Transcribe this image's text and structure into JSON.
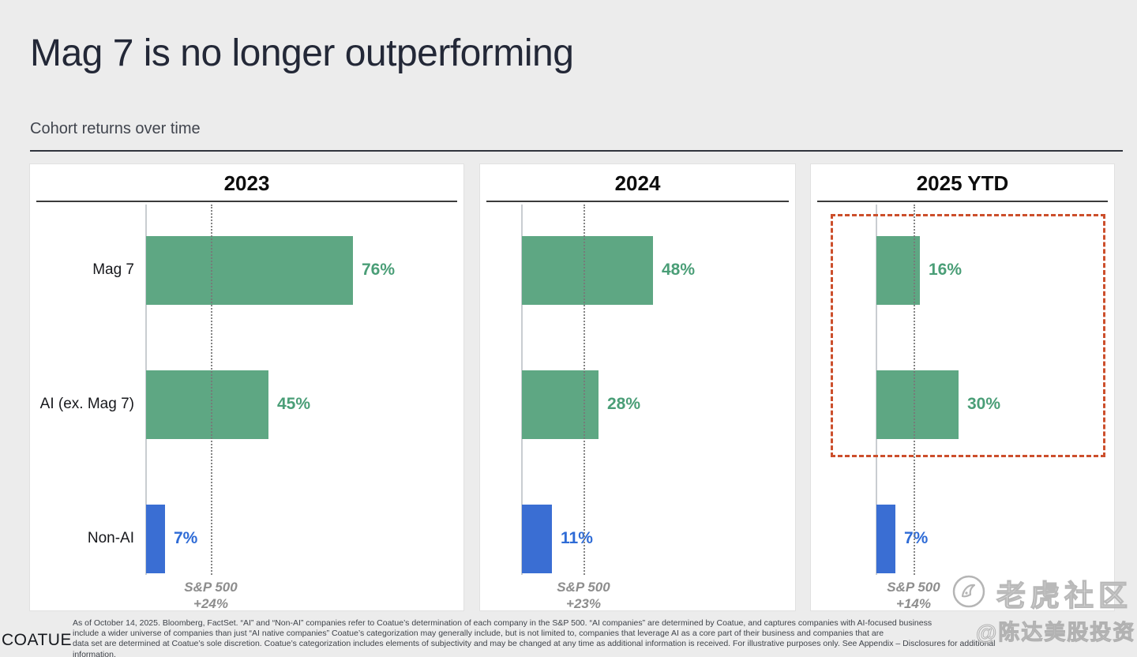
{
  "slide": {
    "title": "Mag 7 is no longer outperforming",
    "subtitle": "Cohort returns over time"
  },
  "chart_data": [
    {
      "type": "bar",
      "orientation": "horizontal",
      "title": "2023",
      "categories": [
        "Mag 7",
        "AI (ex. Mag 7)",
        "Non-AI"
      ],
      "values": [
        76,
        45,
        7
      ],
      "value_labels": [
        "76%",
        "45%",
        "7%"
      ],
      "bar_colors": [
        "green",
        "green",
        "blue"
      ],
      "benchmark": {
        "name": "S&P 500",
        "label": "+24%",
        "value": 24
      },
      "show_category_labels": true,
      "highlight_box": false,
      "xlim": [
        0,
        110
      ]
    },
    {
      "type": "bar",
      "orientation": "horizontal",
      "title": "2024",
      "categories": [
        "Mag 7",
        "AI (ex. Mag 7)",
        "Non-AI"
      ],
      "values": [
        48,
        28,
        11
      ],
      "value_labels": [
        "48%",
        "28%",
        "11%"
      ],
      "bar_colors": [
        "green",
        "green",
        "blue"
      ],
      "benchmark": {
        "name": "S&P 500",
        "label": "+23%",
        "value": 23
      },
      "show_category_labels": false,
      "highlight_box": false,
      "xlim": [
        0,
        100
      ]
    },
    {
      "type": "bar",
      "orientation": "horizontal",
      "title": "2025 YTD",
      "categories": [
        "Mag 7",
        "AI (ex. Mag 7)",
        "Non-AI"
      ],
      "values": [
        16,
        30,
        7
      ],
      "value_labels": [
        "16%",
        "30%",
        "7%"
      ],
      "bar_colors": [
        "green",
        "green",
        "blue"
      ],
      "benchmark": {
        "name": "S&P 500",
        "label": "+14%",
        "value": 14
      },
      "show_category_labels": false,
      "highlight_box": true,
      "xlim": [
        0,
        85
      ]
    }
  ],
  "colors": {
    "green": "#5ea783",
    "blue": "#3a6ed3",
    "green_label": "#4a9e77",
    "blue_label": "#2e6bd6",
    "benchmark_label": "#8d8d8d",
    "highlight": "#cc4f2c"
  },
  "footer": {
    "logo": "COATUE",
    "disclaimer_lines": [
      "As of October 14, 2025. Bloomberg, FactSet. “AI” and “Non-AI” companies refer to Coatue’s determination of each company in the S&P 500. “AI companies” are determined by Coatue, and captures companies with AI-focused business",
      "include a wider universe of companies than just “AI native companies”  Coatue’s categorization may generally include, but is not limited to, companies that leverage AI as a core part of their business and companies that are",
      "data set are determined at Coatue’s sole discretion. Coatue’s categorization includes elements of subjectivity and may be changed at any time as additional information is received. For illustrative purposes only. See Appendix – Disclosures for additional",
      "information."
    ]
  },
  "watermark": {
    "community": "老虎社区",
    "handle": "@陈达美股投资"
  }
}
